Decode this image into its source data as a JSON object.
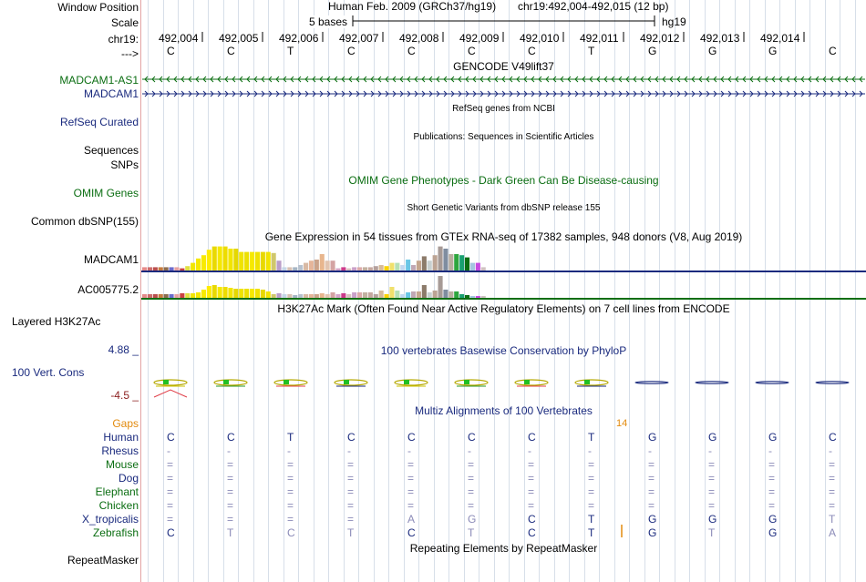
{
  "labels": {
    "window_position": "Window Position",
    "scale": "Scale",
    "chrom": "chr19:",
    "arrow": "--->",
    "madcam1_as1": "MADCAM1-AS1",
    "madcam1": "MADCAM1",
    "refseq_curated": "RefSeq Curated",
    "sequences": "Sequences",
    "snps": "SNPs",
    "omim_genes": "OMIM Genes",
    "common_dbsnp": "Common dbSNP(155)",
    "madcam1_expr": "MADCAM1",
    "ac005775": "AC005775.2",
    "layered_h3k27ac": "Layered H3K27Ac",
    "cons_max": "4.88 _",
    "cons_label": "100 Vert. Cons",
    "cons_min": "-4.5 _",
    "gaps": "Gaps",
    "repeatmasker": "RepeatMasker"
  },
  "header": {
    "assembly": "Human Feb. 2009 (GRCh37/hg19)",
    "position": "chr19:492,004-492,015 (12 bp)",
    "scale_text": "5 bases",
    "scale_db": "hg19",
    "positions": [
      "492,004",
      "492,005",
      "492,006",
      "492,007",
      "492,008",
      "492,009",
      "492,010",
      "492,011",
      "492,012",
      "492,013",
      "492,014"
    ],
    "bases": [
      "C",
      "C",
      "T",
      "C",
      "C",
      "C",
      "C",
      "T",
      "G",
      "G",
      "G",
      "C"
    ]
  },
  "tracks": {
    "gencode_title": "GENCODE V49lift37",
    "refseq_title": "RefSeq genes from NCBI",
    "publications_title": "Publications: Sequences in Scientific Articles",
    "omim_title": "OMIM Gene Phenotypes - Dark Green Can Be Disease-causing",
    "dbsnp_title": "Short Genetic Variants from dbSNP release 155",
    "gtex_title": "Gene Expression in 54 tissues from GTEx RNA-seq of 17382 samples, 948 donors (V8, Aug 2019)",
    "h3k27ac_title": "H3K27Ac Mark (Often Found Near Active Regulatory Elements) on 7 cell lines from ENCODE",
    "phylop_title": "100 vertebrates Basewise Conservation by PhyloP",
    "multiz_title": "Multiz Alignments of 100 Vertebrates",
    "gap_count": "14",
    "repeat_title": "Repeating Elements by RepeatMasker"
  },
  "colors": {
    "navy": "#1a2a7e",
    "green": "#0b6e12",
    "orange": "#e28a0d",
    "gridline": "#d7dfe9",
    "divider": "#e3a4a4"
  },
  "gtex": {
    "madcam1": [
      3,
      3,
      3,
      3,
      3,
      3,
      3,
      2,
      4,
      7,
      11,
      14,
      19,
      22,
      22,
      22,
      20,
      20,
      17,
      17,
      17,
      17,
      17,
      17,
      16,
      9,
      3,
      3,
      3,
      5,
      7,
      9,
      10,
      15,
      9,
      9,
      2,
      3,
      2,
      3,
      3,
      3,
      3,
      4,
      5,
      4,
      7,
      7,
      5,
      10,
      5,
      9,
      13,
      9,
      14,
      22,
      20,
      15,
      15,
      14,
      12,
      7,
      7,
      3
    ],
    "ac005775": [
      4,
      4,
      4,
      4,
      4,
      4,
      4,
      5,
      5,
      5,
      6,
      9,
      13,
      14,
      12,
      12,
      11,
      10,
      10,
      10,
      10,
      10,
      9,
      7,
      4,
      5,
      4,
      4,
      3,
      4,
      4,
      4,
      4,
      5,
      4,
      6,
      4,
      5,
      4,
      6,
      6,
      6,
      6,
      4,
      8,
      4,
      12,
      8,
      4,
      6,
      7,
      7,
      14,
      6,
      8,
      24,
      9,
      7,
      7,
      4,
      3,
      2,
      2,
      2
    ],
    "colors": [
      "#e58a8a",
      "#cc6b6b",
      "#b94d4d",
      "#c57a3e",
      "#8b6b4e",
      "#6a6bcc",
      "#e6a1a1",
      "#c94040",
      "#e0e040",
      "#f1e600",
      "#f5e800",
      "#f8ea00",
      "#ffec00",
      "#e9d900",
      "#f5e800",
      "#eddc00",
      "#f2e500",
      "#e5d800",
      "#f0e300",
      "#ece000",
      "#f6e900",
      "#efe200",
      "#e8d800",
      "#f2e400",
      "#d0c76b",
      "#ba9ec9",
      "#c5d6e6",
      "#d7c0b3",
      "#a5b5c5",
      "#b7c1ce",
      "#d8b9a4",
      "#e5b59a",
      "#cba38a",
      "#e8b68e",
      "#e2c4b0",
      "#d4a3a3",
      "#d3a3c8",
      "#cc3a8b",
      "#d8bfbf",
      "#c9a0c9",
      "#dba9a9",
      "#c2b1a0",
      "#c5a8a0",
      "#b4a09c",
      "#d6ba9b",
      "#fbd300",
      "#f0e06b",
      "#b5e0b5",
      "#c0d7f0",
      "#69c6e6",
      "#c0a7b4",
      "#c4a68f",
      "#8c7b6a",
      "#c8d0d0",
      "#bca494",
      "#a69a96",
      "#7f8da0",
      "#b9aea0",
      "#2ea63e",
      "#18a070",
      "#0b6e12",
      "#a4c6e0",
      "#c84ae0",
      "#cfc2c2"
    ]
  },
  "species": [
    {
      "name": "Human",
      "color": "#1a2a7e",
      "bases": [
        "C",
        "C",
        "T",
        "C",
        "C",
        "C",
        "C",
        "T",
        "G",
        "G",
        "G",
        "C"
      ]
    },
    {
      "name": "Rhesus",
      "color": "#1a2a7e",
      "bases": [
        "-",
        "-",
        "-",
        "-",
        "-",
        "-",
        "-",
        "-",
        "-",
        "-",
        "-",
        "-"
      ]
    },
    {
      "name": "Mouse",
      "color": "#0b6e12",
      "bases": [
        "=",
        "=",
        "=",
        "=",
        "=",
        "=",
        "=",
        "=",
        "=",
        "=",
        "=",
        "="
      ]
    },
    {
      "name": "Dog",
      "color": "#1a2a7e",
      "bases": [
        "=",
        "=",
        "=",
        "=",
        "=",
        "=",
        "=",
        "=",
        "=",
        "=",
        "=",
        "="
      ]
    },
    {
      "name": "Elephant",
      "color": "#0b6e12",
      "bases": [
        "=",
        "=",
        "=",
        "=",
        "=",
        "=",
        "=",
        "=",
        "=",
        "=",
        "=",
        "="
      ]
    },
    {
      "name": "Chicken",
      "color": "#0b6e12",
      "bases": [
        "=",
        "=",
        "=",
        "=",
        "=",
        "=",
        "=",
        "=",
        "=",
        "=",
        "=",
        "="
      ]
    },
    {
      "name": "X_tropicalis",
      "color": "#1a2a7e",
      "bases": [
        "=",
        "=",
        "=",
        "=",
        "A",
        "G",
        "C",
        "T",
        "G",
        "G",
        "G",
        "T"
      ]
    },
    {
      "name": "Zebrafish",
      "color": "#0b6e12",
      "bases": [
        "C",
        "T",
        "C",
        "T",
        "C",
        "T",
        "C",
        "T",
        "G",
        "T",
        "G",
        "A"
      ]
    }
  ]
}
